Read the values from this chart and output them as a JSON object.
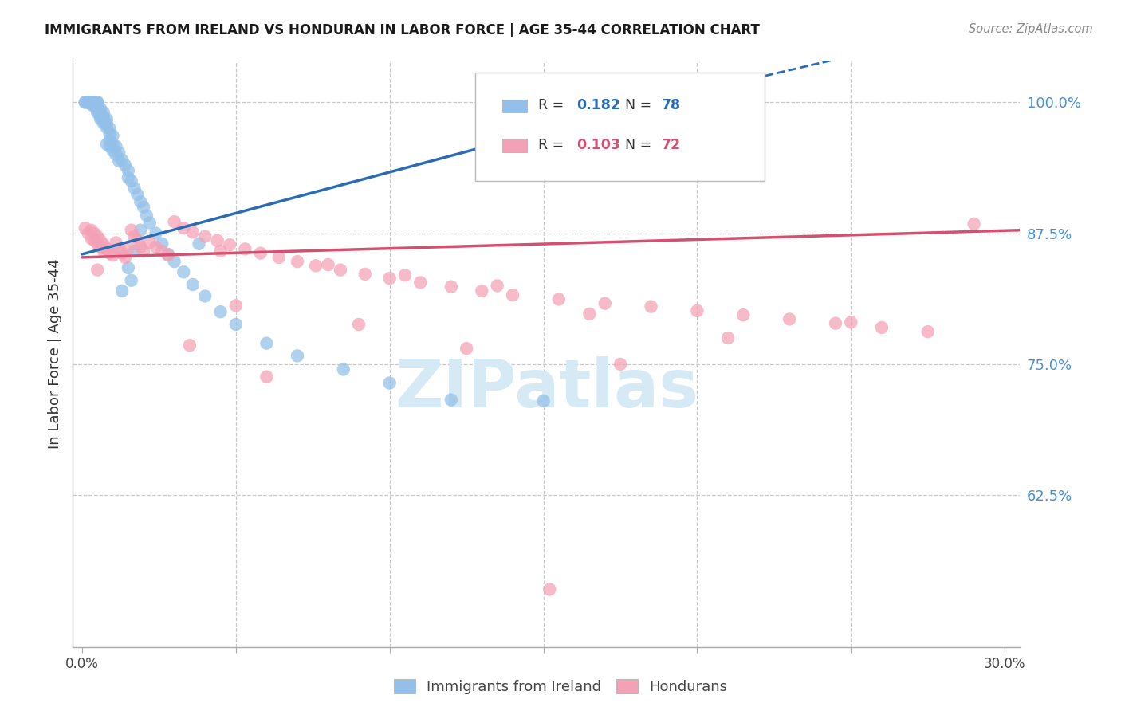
{
  "title": "IMMIGRANTS FROM IRELAND VS HONDURAN IN LABOR FORCE | AGE 35-44 CORRELATION CHART",
  "source": "Source: ZipAtlas.com",
  "ylabel": "In Labor Force | Age 35-44",
  "xlim": [
    -0.003,
    0.305
  ],
  "ylim": [
    0.48,
    1.04
  ],
  "yticks": [
    0.625,
    0.75,
    0.875,
    1.0
  ],
  "ytick_labels": [
    "62.5%",
    "75.0%",
    "87.5%",
    "100.0%"
  ],
  "blue_R": 0.182,
  "blue_N": 78,
  "pink_R": 0.103,
  "pink_N": 72,
  "blue_color": "#92C0E8",
  "blue_line_color": "#2B6BB5",
  "pink_color": "#F4A0B5",
  "pink_line_color": "#D45070",
  "blue_line_x0": 0.0,
  "blue_line_y0": 0.855,
  "blue_line_x1": 0.185,
  "blue_line_y1": 1.0,
  "blue_line_xdash": 0.305,
  "blue_line_ydash": 1.082,
  "pink_line_x0": 0.0,
  "pink_line_y0": 0.852,
  "pink_line_x1": 0.305,
  "pink_line_y1": 0.878,
  "watermark": "ZIPatlas",
  "watermark_color": "#D5EAF5",
  "background_color": "#FFFFFF",
  "grid_color": "#C8C8C8",
  "blue_x": [
    0.001,
    0.001,
    0.002,
    0.002,
    0.002,
    0.003,
    0.003,
    0.003,
    0.003,
    0.003,
    0.004,
    0.004,
    0.004,
    0.004,
    0.005,
    0.005,
    0.005,
    0.005,
    0.005,
    0.005,
    0.005,
    0.006,
    0.006,
    0.006,
    0.006,
    0.006,
    0.007,
    0.007,
    0.007,
    0.007,
    0.007,
    0.008,
    0.008,
    0.008,
    0.008,
    0.009,
    0.009,
    0.009,
    0.009,
    0.01,
    0.01,
    0.01,
    0.011,
    0.011,
    0.012,
    0.012,
    0.013,
    0.014,
    0.015,
    0.015,
    0.016,
    0.017,
    0.018,
    0.019,
    0.02,
    0.021,
    0.022,
    0.024,
    0.026,
    0.028,
    0.03,
    0.033,
    0.036,
    0.04,
    0.045,
    0.05,
    0.06,
    0.07,
    0.085,
    0.1,
    0.12,
    0.15,
    0.038,
    0.019,
    0.017,
    0.015,
    0.016,
    0.013
  ],
  "blue_y": [
    1.0,
    1.0,
    1.0,
    1.0,
    1.0,
    1.0,
    1.0,
    1.0,
    1.0,
    0.998,
    1.0,
    1.0,
    0.998,
    0.996,
    1.0,
    1.0,
    0.998,
    0.996,
    0.994,
    0.992,
    0.99,
    0.994,
    0.99,
    0.988,
    0.986,
    0.984,
    0.99,
    0.986,
    0.984,
    0.982,
    0.98,
    0.984,
    0.98,
    0.976,
    0.96,
    0.975,
    0.97,
    0.964,
    0.958,
    0.968,
    0.96,
    0.954,
    0.958,
    0.95,
    0.952,
    0.944,
    0.945,
    0.94,
    0.935,
    0.928,
    0.925,
    0.918,
    0.912,
    0.905,
    0.9,
    0.892,
    0.885,
    0.875,
    0.865,
    0.855,
    0.848,
    0.838,
    0.826,
    0.815,
    0.8,
    0.788,
    0.77,
    0.758,
    0.745,
    0.732,
    0.716,
    0.715,
    0.865,
    0.878,
    0.858,
    0.842,
    0.83,
    0.82
  ],
  "pink_x": [
    0.001,
    0.002,
    0.003,
    0.003,
    0.004,
    0.004,
    0.005,
    0.005,
    0.006,
    0.006,
    0.007,
    0.007,
    0.008,
    0.009,
    0.01,
    0.011,
    0.012,
    0.013,
    0.014,
    0.015,
    0.016,
    0.017,
    0.018,
    0.019,
    0.02,
    0.022,
    0.024,
    0.026,
    0.028,
    0.03,
    0.033,
    0.036,
    0.04,
    0.044,
    0.048,
    0.053,
    0.058,
    0.064,
    0.07,
    0.076,
    0.084,
    0.092,
    0.1,
    0.11,
    0.12,
    0.13,
    0.14,
    0.155,
    0.17,
    0.185,
    0.2,
    0.215,
    0.23,
    0.245,
    0.26,
    0.275,
    0.045,
    0.08,
    0.105,
    0.135,
    0.05,
    0.165,
    0.25,
    0.29,
    0.125,
    0.175,
    0.06,
    0.035,
    0.09,
    0.21,
    0.152,
    0.005
  ],
  "pink_y": [
    0.88,
    0.875,
    0.878,
    0.87,
    0.875,
    0.868,
    0.872,
    0.865,
    0.868,
    0.862,
    0.864,
    0.858,
    0.86,
    0.856,
    0.854,
    0.866,
    0.86,
    0.856,
    0.852,
    0.86,
    0.878,
    0.872,
    0.868,
    0.862,
    0.858,
    0.866,
    0.862,
    0.858,
    0.854,
    0.886,
    0.88,
    0.876,
    0.872,
    0.868,
    0.864,
    0.86,
    0.856,
    0.852,
    0.848,
    0.844,
    0.84,
    0.836,
    0.832,
    0.828,
    0.824,
    0.82,
    0.816,
    0.812,
    0.808,
    0.805,
    0.801,
    0.797,
    0.793,
    0.789,
    0.785,
    0.781,
    0.858,
    0.845,
    0.835,
    0.825,
    0.806,
    0.798,
    0.79,
    0.884,
    0.765,
    0.75,
    0.738,
    0.768,
    0.788,
    0.775,
    0.535,
    0.84
  ]
}
